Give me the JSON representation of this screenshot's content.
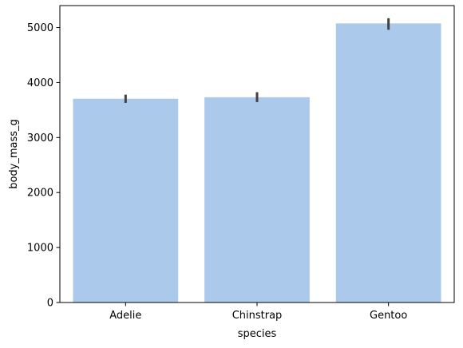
{
  "chart_data": {
    "type": "bar",
    "title": "",
    "xlabel": "species",
    "ylabel": "body_mass_g",
    "categories": [
      "Adelie",
      "Chinstrap",
      "Gentoo"
    ],
    "values": [
      3706,
      3733,
      5076
    ],
    "error_bars": [
      {
        "low": 3630,
        "high": 3780
      },
      {
        "low": 3645,
        "high": 3825
      },
      {
        "low": 4960,
        "high": 5170
      }
    ],
    "ylim": [
      0,
      5400
    ],
    "yticks": [
      0,
      1000,
      2000,
      3000,
      4000,
      5000
    ],
    "grid": false,
    "legend": "none",
    "bar_color": "#abc9ea",
    "errorbar_color": "#424242",
    "axis_color": "#000000"
  }
}
